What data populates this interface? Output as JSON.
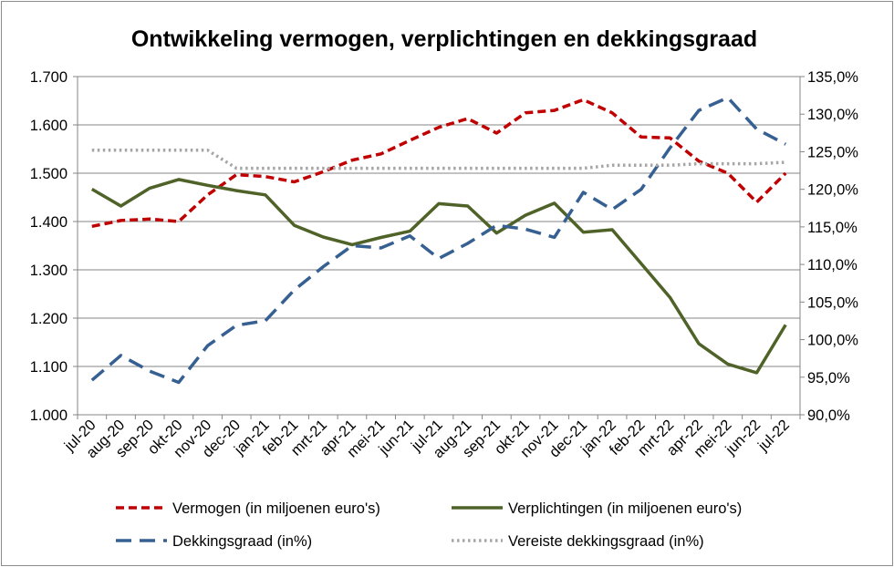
{
  "chart_data": {
    "type": "line",
    "title": "Ontwikkeling vermogen, verplichtingen en dekkingsgraad",
    "xlabel": "",
    "ylabel": "",
    "y2label": "",
    "categories": [
      "jul-20",
      "aug-20",
      "sep-20",
      "okt-20",
      "nov-20",
      "dec-20",
      "jan-21",
      "feb-21",
      "mrt-21",
      "apr-21",
      "mei-21",
      "jun-21",
      "jul-21",
      "aug-21",
      "sep-21",
      "okt-21",
      "nov-21",
      "dec-21",
      "jan-22",
      "feb-22",
      "mrt-22",
      "apr-22",
      "mei-22",
      "jun-22",
      "jul-22"
    ],
    "ylim": [
      1000,
      1700
    ],
    "yticks": [
      "1.000",
      "1.100",
      "1.200",
      "1.300",
      "1.400",
      "1.500",
      "1.600",
      "1.700"
    ],
    "y2lim": [
      90,
      135
    ],
    "y2ticks": [
      "90,0%",
      "95,0%",
      "100,0%",
      "105,0%",
      "110,0%",
      "115,0%",
      "120,0%",
      "125,0%",
      "130,0%",
      "135,0%"
    ],
    "grid": true,
    "legend_position": "bottom",
    "series": [
      {
        "name": "Vermogen (in miljoenen euro's)",
        "axis": "left",
        "color": "#c00000",
        "style": "dash",
        "values": [
          1390,
          1402,
          1405,
          1400,
          1455,
          1497,
          1493,
          1482,
          1503,
          1527,
          1540,
          1568,
          1595,
          1613,
          1583,
          1625,
          1630,
          1652,
          1625,
          1575,
          1573,
          1525,
          1500,
          1440,
          1500
        ]
      },
      {
        "name": "Verplichtingen (in miljoenen euro's)",
        "axis": "left",
        "color": "#4f6228",
        "style": "solid",
        "values": [
          1467,
          1432,
          1469,
          1487,
          1475,
          1464,
          1455,
          1392,
          1368,
          1352,
          1367,
          1380,
          1437,
          1432,
          1376,
          1413,
          1438,
          1378,
          1383,
          1313,
          1243,
          1147,
          1105,
          1087,
          1186
        ]
      },
      {
        "name": "Dekkingsgraad (in%)",
        "axis": "right",
        "color": "#376092",
        "style": "longdash",
        "values": [
          94.6,
          97.9,
          95.8,
          94.3,
          99.2,
          101.9,
          102.5,
          106.6,
          109.7,
          112.5,
          112.2,
          113.8,
          110.8,
          112.8,
          115.2,
          114.7,
          113.6,
          119.6,
          117.3,
          120.0,
          125.5,
          130.5,
          132.2,
          128.0,
          126.0
        ]
      },
      {
        "name": "Vereiste dekkingsgraad (in%)",
        "axis": "right",
        "color": "#a6a6a6",
        "style": "dot",
        "values": [
          125.2,
          125.2,
          125.2,
          125.2,
          125.2,
          122.8,
          122.8,
          122.8,
          122.8,
          122.8,
          122.8,
          122.8,
          122.8,
          122.8,
          122.8,
          122.8,
          122.8,
          122.8,
          123.2,
          123.2,
          123.2,
          123.4,
          123.4,
          123.4,
          123.6
        ]
      }
    ]
  }
}
